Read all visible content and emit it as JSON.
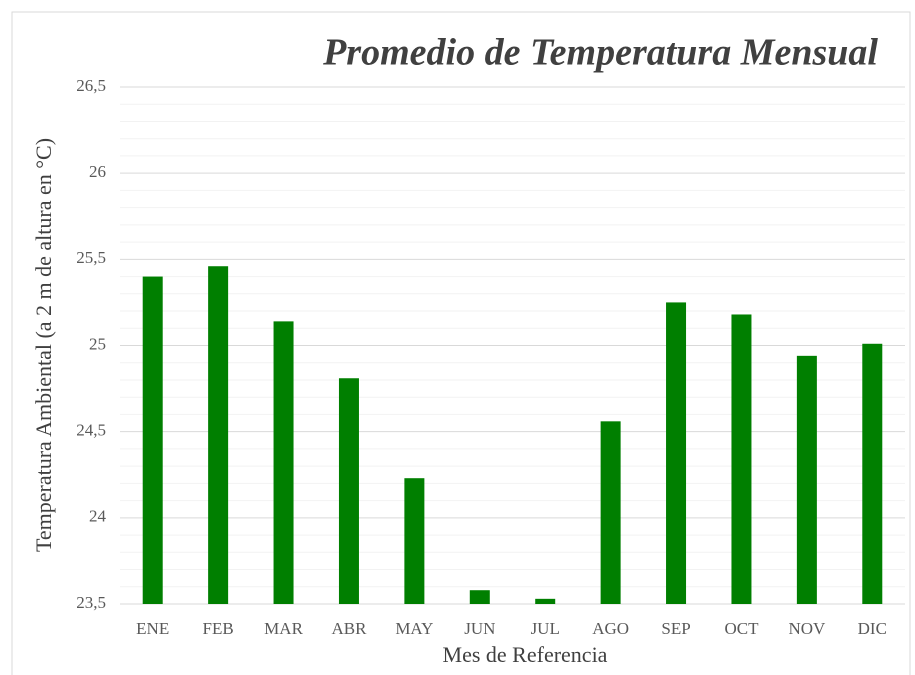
{
  "chart_data": {
    "type": "bar",
    "title": "Promedio de Temperatura Mensual",
    "x_label": "Mes de Referencia",
    "y_label": "Temperatura Ambiental  (a 2 m de altura en °C)",
    "categories": [
      "ENE",
      "FEB",
      "MAR",
      "ABR",
      "MAY",
      "JUN",
      "JUL",
      "AGO",
      "SEP",
      "OCT",
      "NOV",
      "DIC"
    ],
    "values": [
      25.4,
      25.46,
      25.14,
      24.81,
      24.23,
      23.58,
      23.53,
      24.56,
      25.25,
      25.18,
      24.94,
      25.01
    ],
    "color": "#007f00",
    "ylim": [
      23.5,
      26.5
    ],
    "yticks": [
      {
        "value": 23.5,
        "label": "23,5"
      },
      24,
      {
        "value": 24.5,
        "label": "24,5"
      },
      25,
      {
        "value": 25.5,
        "label": "25,5"
      },
      26,
      {
        "value": 26.5,
        "label": "26,5"
      }
    ],
    "minor_yticks": [
      23.6,
      23.7,
      23.8,
      23.9,
      24.1,
      24.2,
      24.3,
      24.4,
      24.6,
      24.7,
      24.8,
      24.9,
      25.1,
      25.2,
      25.3,
      25.4,
      25.6,
      25.7,
      25.8,
      25.9,
      26.1,
      26.2,
      26.3,
      26.4
    ],
    "grid": true
  }
}
